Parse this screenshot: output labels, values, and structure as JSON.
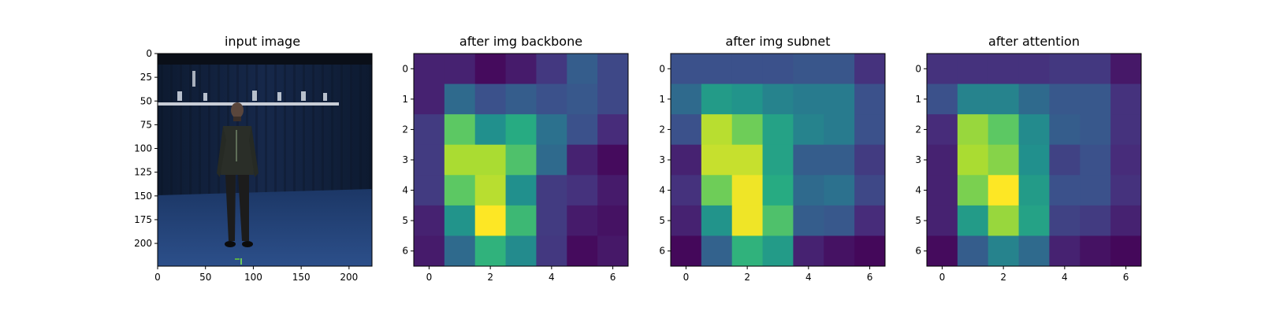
{
  "chart_data": [
    {
      "type": "image",
      "title": "input image",
      "image_description": "person in dark clothing standing in a blue studio with dark curtains and ceiling rig",
      "xlim": [
        0,
        224
      ],
      "ylim": [
        224,
        0
      ],
      "xticks": [
        0,
        50,
        100,
        150,
        200
      ],
      "yticks": [
        0,
        25,
        50,
        75,
        100,
        125,
        150,
        175,
        200
      ]
    },
    {
      "type": "heatmap",
      "title": "after img backbone",
      "colormap": "viridis",
      "xticks": [
        0,
        2,
        4,
        6
      ],
      "yticks": [
        0,
        1,
        2,
        3,
        4,
        5,
        6
      ],
      "values": [
        [
          0.1,
          0.1,
          0.03,
          0.08,
          0.17,
          0.3,
          0.22
        ],
        [
          0.1,
          0.35,
          0.25,
          0.3,
          0.25,
          0.28,
          0.22
        ],
        [
          0.18,
          0.75,
          0.5,
          0.62,
          0.38,
          0.25,
          0.13
        ],
        [
          0.18,
          0.88,
          0.88,
          0.72,
          0.35,
          0.1,
          0.03
        ],
        [
          0.18,
          0.75,
          0.9,
          0.5,
          0.18,
          0.15,
          0.08
        ],
        [
          0.1,
          0.52,
          1.0,
          0.68,
          0.18,
          0.08,
          0.05
        ],
        [
          0.08,
          0.35,
          0.65,
          0.48,
          0.17,
          0.03,
          0.07
        ]
      ]
    },
    {
      "type": "heatmap",
      "title": "after img subnet",
      "colormap": "viridis",
      "xticks": [
        0,
        2,
        4,
        6
      ],
      "yticks": [
        0,
        1,
        2,
        3,
        4,
        5,
        6
      ],
      "values": [
        [
          0.25,
          0.25,
          0.25,
          0.25,
          0.27,
          0.27,
          0.15
        ],
        [
          0.35,
          0.55,
          0.52,
          0.45,
          0.42,
          0.42,
          0.25
        ],
        [
          0.25,
          0.9,
          0.78,
          0.58,
          0.45,
          0.42,
          0.25
        ],
        [
          0.1,
          0.92,
          0.92,
          0.58,
          0.3,
          0.3,
          0.18
        ],
        [
          0.15,
          0.78,
          0.98,
          0.62,
          0.35,
          0.38,
          0.22
        ],
        [
          0.1,
          0.52,
          0.98,
          0.72,
          0.3,
          0.28,
          0.13
        ],
        [
          0.02,
          0.32,
          0.65,
          0.55,
          0.1,
          0.05,
          0.02
        ]
      ]
    },
    {
      "type": "heatmap",
      "title": "after attention",
      "colormap": "viridis",
      "xticks": [
        0,
        2,
        4,
        6
      ],
      "yticks": [
        0,
        1,
        2,
        3,
        4,
        5,
        6
      ],
      "values": [
        [
          0.15,
          0.15,
          0.15,
          0.15,
          0.17,
          0.17,
          0.07
        ],
        [
          0.25,
          0.45,
          0.45,
          0.35,
          0.28,
          0.28,
          0.15
        ],
        [
          0.13,
          0.85,
          0.75,
          0.48,
          0.3,
          0.28,
          0.15
        ],
        [
          0.1,
          0.88,
          0.82,
          0.5,
          0.2,
          0.25,
          0.13
        ],
        [
          0.1,
          0.8,
          1.0,
          0.55,
          0.25,
          0.25,
          0.15
        ],
        [
          0.1,
          0.55,
          0.85,
          0.58,
          0.2,
          0.18,
          0.1
        ],
        [
          0.03,
          0.3,
          0.45,
          0.35,
          0.1,
          0.05,
          0.02
        ]
      ]
    }
  ]
}
